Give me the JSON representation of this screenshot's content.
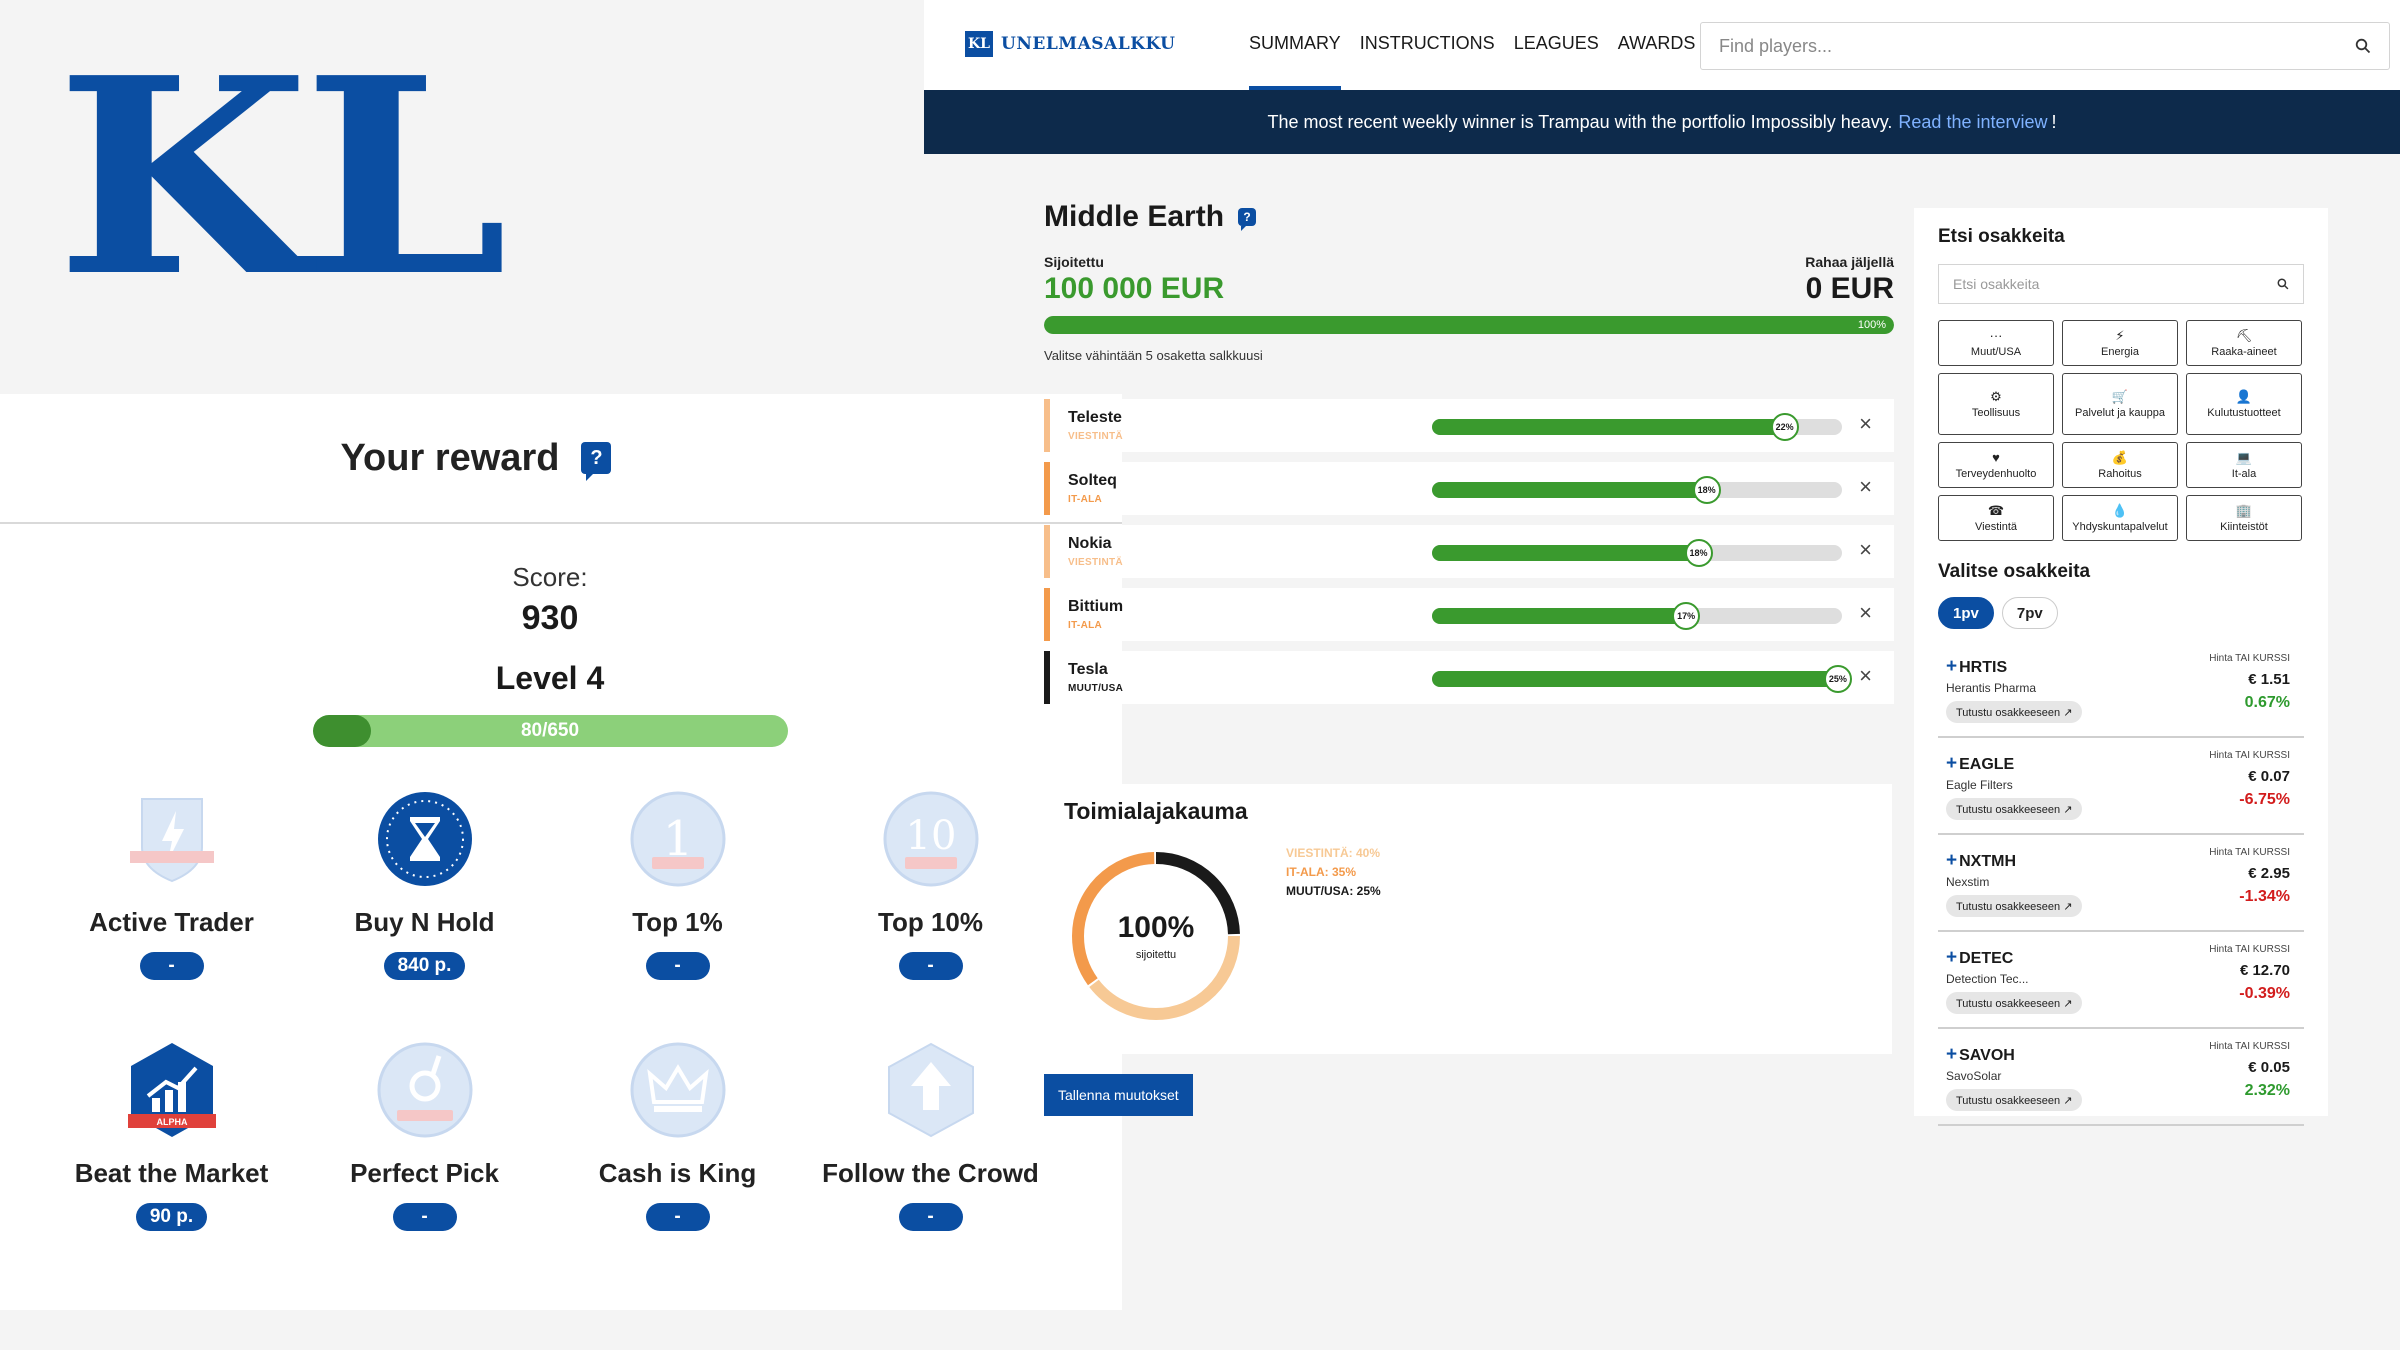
{
  "logo": {
    "text": "KL"
  },
  "reward": {
    "title": "Your reward",
    "score_label": "Score:",
    "score": "930",
    "level": "Level 4",
    "progress_text": "80/650",
    "progress_fraction": 0.123,
    "badges": [
      {
        "name": "Active Trader",
        "points": "-",
        "icon": "lightning-shield-icon",
        "earned": false
      },
      {
        "name": "Buy N Hold",
        "points": "840 p.",
        "icon": "hourglass-icon",
        "earned": true
      },
      {
        "name": "Top 1%",
        "points": "-",
        "icon": "number-one-icon",
        "earned": false,
        "icon_text": "1"
      },
      {
        "name": "Top 10%",
        "points": "-",
        "icon": "number-ten-icon",
        "earned": false,
        "icon_text": "10"
      },
      {
        "name": "Beat the Market",
        "points": "90 p.",
        "icon": "rising-chart-icon",
        "earned": true,
        "icon_text": "ALPHA"
      },
      {
        "name": "Perfect Pick",
        "points": "-",
        "icon": "ok-hand-icon",
        "earned": false
      },
      {
        "name": "Cash is King",
        "points": "-",
        "icon": "crown-icon",
        "earned": false
      },
      {
        "name": "Follow the Crowd",
        "points": "-",
        "icon": "arrow-up-icon",
        "earned": false
      }
    ]
  },
  "app": {
    "brand_badge": "KL",
    "brand_name": "UNELMASALKKU",
    "menu": [
      "SUMMARY",
      "INSTRUCTIONS",
      "LEAGUES",
      "AWARDS"
    ],
    "active_menu": 0,
    "search_placeholder": "Find players...",
    "banner": {
      "text": "The most recent weekly winner is Trampau with the portfolio Impossibly heavy.",
      "link": "Read the interview",
      "suffix": "!"
    },
    "portfolio": {
      "name": "Middle Earth",
      "invested_label": "Sijoitettu",
      "invested": "100 000 EUR",
      "left_label": "Rahaa jäljellä",
      "left": "0 EUR",
      "invested_pct": "100%",
      "invested_fraction": 1.0,
      "hint": "Valitse vähintään 5 osaketta salkkuusi",
      "stocks": [
        {
          "name": "Teleste",
          "sector": "VIESTINTÄ",
          "weight": "22%",
          "fraction": 0.86,
          "color": "#f7be8a"
        },
        {
          "name": "Solteq",
          "sector": "IT-ALA",
          "weight": "18%",
          "fraction": 0.67,
          "color": "#f39a4b"
        },
        {
          "name": "Nokia",
          "sector": "VIESTINTÄ",
          "weight": "18%",
          "fraction": 0.65,
          "color": "#f7be8a"
        },
        {
          "name": "Bittium",
          "sector": "IT-ALA",
          "weight": "17%",
          "fraction": 0.62,
          "color": "#f39a4b"
        },
        {
          "name": "Tesla",
          "sector": "MUUT/USA",
          "weight": "25%",
          "fraction": 0.99,
          "color": "#1a1a1a"
        }
      ]
    },
    "distribution": {
      "title": "Toimialajakauma",
      "center_value": "100%",
      "center_label": "sijoitettu",
      "segments": [
        {
          "label": "VIESTINTÄ: 40%",
          "value": 40,
          "color": "#f7c995"
        },
        {
          "label": "IT-ALA: 35%",
          "value": 35,
          "color": "#f39a4b"
        },
        {
          "label": "MUUT/USA: 25%",
          "value": 25,
          "color": "#1a1a1a"
        }
      ]
    },
    "save_label": "Tallenna muutokset",
    "side": {
      "title": "Etsi osakkeita",
      "search_placeholder": "Etsi osakkeita",
      "categories": [
        {
          "label": "Muut/USA",
          "icon": "dots-icon",
          "glyph": "···"
        },
        {
          "label": "Energia",
          "icon": "bolt-icon",
          "glyph": "⚡"
        },
        {
          "label": "Raaka-aineet",
          "icon": "raw-materials-icon",
          "glyph": "⛏"
        },
        {
          "label": "Teollisuus",
          "icon": "gears-icon",
          "glyph": "⚙"
        },
        {
          "label": "Palvelut ja kauppa",
          "icon": "shop-icon",
          "glyph": "🛒"
        },
        {
          "label": "Kulutustuotteet",
          "icon": "person-icon",
          "glyph": "👤"
        },
        {
          "label": "Terveydenhuolto",
          "icon": "heart-icon",
          "glyph": "♥"
        },
        {
          "label": "Rahoitus",
          "icon": "coins-icon",
          "glyph": "💰"
        },
        {
          "label": "It-ala",
          "icon": "laptop-icon",
          "glyph": "💻"
        },
        {
          "label": "Viestintä",
          "icon": "phone-icon",
          "glyph": "☎"
        },
        {
          "label": "Yhdyskuntapalvelut",
          "icon": "drop-icon",
          "glyph": "💧"
        },
        {
          "label": "Kiinteistöt",
          "icon": "building-icon",
          "glyph": "🏢"
        }
      ],
      "pick_title": "Valitse osakkeita",
      "periods": [
        "1pv",
        "7pv"
      ],
      "active_period": 0,
      "price_header": "Hinta TAI KURSSI",
      "link_label": "Tutustu osakkeeseen ↗",
      "rows": [
        {
          "symbol": "HRTIS",
          "company": "Herantis Pharma",
          "price": "€ 1.51",
          "change": "0.67%",
          "dir": "up"
        },
        {
          "symbol": "EAGLE",
          "company": "Eagle Filters",
          "price": "€ 0.07",
          "change": "-6.75%",
          "dir": "down"
        },
        {
          "symbol": "NXTMH",
          "company": "Nexstim",
          "price": "€ 2.95",
          "change": "-1.34%",
          "dir": "down"
        },
        {
          "symbol": "DETEC",
          "company": "Detection Tec...",
          "price": "€ 12.70",
          "change": "-0.39%",
          "dir": "down"
        },
        {
          "symbol": "SAVOH",
          "company": "SavoSolar",
          "price": "€ 0.05",
          "change": "2.32%",
          "dir": "up"
        }
      ]
    }
  },
  "colors": {
    "brand": "#0b4ea2",
    "navy": "#0d2a4b",
    "green": "#3a9a2e",
    "red": "#d21c1c"
  }
}
